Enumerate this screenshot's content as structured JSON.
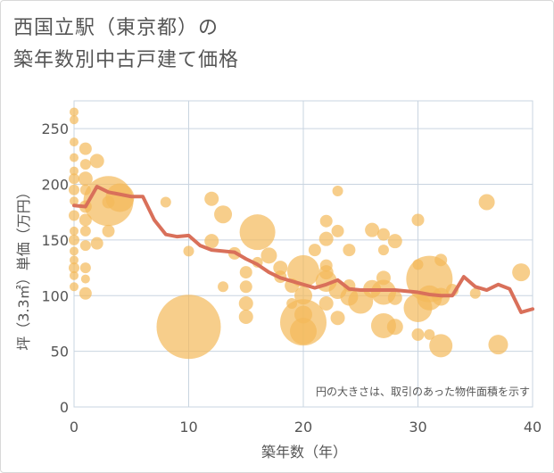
{
  "title_lines": [
    "西国立駅（東京都）の",
    "築年数別中古戸建て価格"
  ],
  "chart_data": {
    "type": "scatter",
    "xlabel": "築年数（年）",
    "ylabel": "坪（3.3㎡）単価（万円）",
    "xlim": [
      0,
      40
    ],
    "ylim": [
      0,
      275
    ],
    "x_ticks": [
      0,
      10,
      20,
      30,
      40
    ],
    "y_ticks": [
      0,
      50,
      100,
      150,
      200,
      250
    ],
    "grid": true,
    "annotation": "円の大きさは、取引のあった物件面積を示す",
    "colors": {
      "bubble": "#f4b95a",
      "line": "#d9705a",
      "grid": "#c9d4e0"
    },
    "bubbles": [
      {
        "x": 0,
        "y": 265,
        "s": 5
      },
      {
        "x": 0,
        "y": 258,
        "s": 5
      },
      {
        "x": 0,
        "y": 238,
        "s": 5
      },
      {
        "x": 0,
        "y": 224,
        "s": 5
      },
      {
        "x": 0,
        "y": 212,
        "s": 5
      },
      {
        "x": 0,
        "y": 205,
        "s": 6
      },
      {
        "x": 0,
        "y": 195,
        "s": 6
      },
      {
        "x": 0,
        "y": 185,
        "s": 5
      },
      {
        "x": 0,
        "y": 172,
        "s": 6
      },
      {
        "x": 0,
        "y": 158,
        "s": 5
      },
      {
        "x": 0,
        "y": 150,
        "s": 6
      },
      {
        "x": 0,
        "y": 140,
        "s": 5
      },
      {
        "x": 0,
        "y": 132,
        "s": 5
      },
      {
        "x": 0,
        "y": 125,
        "s": 6
      },
      {
        "x": 0,
        "y": 118,
        "s": 5
      },
      {
        "x": 0,
        "y": 108,
        "s": 5
      },
      {
        "x": 1,
        "y": 232,
        "s": 7
      },
      {
        "x": 1,
        "y": 218,
        "s": 6
      },
      {
        "x": 1,
        "y": 205,
        "s": 8
      },
      {
        "x": 1,
        "y": 195,
        "s": 6
      },
      {
        "x": 1,
        "y": 180,
        "s": 7
      },
      {
        "x": 1,
        "y": 168,
        "s": 7
      },
      {
        "x": 1,
        "y": 158,
        "s": 6
      },
      {
        "x": 1,
        "y": 145,
        "s": 6
      },
      {
        "x": 1,
        "y": 125,
        "s": 6
      },
      {
        "x": 1,
        "y": 115,
        "s": 5
      },
      {
        "x": 1,
        "y": 102,
        "s": 7
      },
      {
        "x": 2,
        "y": 221,
        "s": 8
      },
      {
        "x": 2,
        "y": 147,
        "s": 7
      },
      {
        "x": 3,
        "y": 185,
        "s": 28
      },
      {
        "x": 3,
        "y": 158,
        "s": 7
      },
      {
        "x": 3,
        "y": 184,
        "s": 7
      },
      {
        "x": 4,
        "y": 188,
        "s": 16
      },
      {
        "x": 8,
        "y": 184,
        "s": 6
      },
      {
        "x": 10,
        "y": 140,
        "s": 6
      },
      {
        "x": 10,
        "y": 72,
        "s": 36
      },
      {
        "x": 12,
        "y": 187,
        "s": 8
      },
      {
        "x": 12,
        "y": 149,
        "s": 8
      },
      {
        "x": 13,
        "y": 173,
        "s": 10
      },
      {
        "x": 13,
        "y": 108,
        "s": 6
      },
      {
        "x": 14,
        "y": 138,
        "s": 7
      },
      {
        "x": 15,
        "y": 121,
        "s": 7
      },
      {
        "x": 15,
        "y": 108,
        "s": 7
      },
      {
        "x": 15,
        "y": 93,
        "s": 8
      },
      {
        "x": 15,
        "y": 81,
        "s": 8
      },
      {
        "x": 16,
        "y": 157,
        "s": 20
      },
      {
        "x": 16,
        "y": 130,
        "s": 6
      },
      {
        "x": 17,
        "y": 136,
        "s": 9
      },
      {
        "x": 18,
        "y": 125,
        "s": 8
      },
      {
        "x": 18,
        "y": 117,
        "s": 7
      },
      {
        "x": 19,
        "y": 109,
        "s": 8
      },
      {
        "x": 19,
        "y": 93,
        "s": 6
      },
      {
        "x": 20,
        "y": 122,
        "s": 18
      },
      {
        "x": 20,
        "y": 100,
        "s": 10
      },
      {
        "x": 20,
        "y": 83,
        "s": 10
      },
      {
        "x": 20,
        "y": 76,
        "s": 26
      },
      {
        "x": 20,
        "y": 68,
        "s": 15
      },
      {
        "x": 21,
        "y": 141,
        "s": 7
      },
      {
        "x": 22,
        "y": 167,
        "s": 7
      },
      {
        "x": 22,
        "y": 151,
        "s": 8
      },
      {
        "x": 22,
        "y": 127,
        "s": 7
      },
      {
        "x": 22,
        "y": 121,
        "s": 8
      },
      {
        "x": 22,
        "y": 113,
        "s": 12
      },
      {
        "x": 22,
        "y": 93,
        "s": 8
      },
      {
        "x": 23,
        "y": 194,
        "s": 6
      },
      {
        "x": 23,
        "y": 158,
        "s": 7
      },
      {
        "x": 23,
        "y": 80,
        "s": 8
      },
      {
        "x": 23,
        "y": 105,
        "s": 10
      },
      {
        "x": 24,
        "y": 141,
        "s": 7
      },
      {
        "x": 24,
        "y": 109,
        "s": 7
      },
      {
        "x": 24,
        "y": 99,
        "s": 10
      },
      {
        "x": 25,
        "y": 95,
        "s": 14
      },
      {
        "x": 26,
        "y": 159,
        "s": 8
      },
      {
        "x": 26,
        "y": 106,
        "s": 10
      },
      {
        "x": 27,
        "y": 155,
        "s": 7
      },
      {
        "x": 27,
        "y": 141,
        "s": 6
      },
      {
        "x": 27,
        "y": 116,
        "s": 8
      },
      {
        "x": 27,
        "y": 103,
        "s": 14
      },
      {
        "x": 27,
        "y": 73,
        "s": 14
      },
      {
        "x": 28,
        "y": 149,
        "s": 8
      },
      {
        "x": 28,
        "y": 98,
        "s": 8
      },
      {
        "x": 28,
        "y": 72,
        "s": 9
      },
      {
        "x": 30,
        "y": 168,
        "s": 7
      },
      {
        "x": 30,
        "y": 128,
        "s": 6
      },
      {
        "x": 30,
        "y": 89,
        "s": 16
      },
      {
        "x": 30,
        "y": 65,
        "s": 7
      },
      {
        "x": 31,
        "y": 115,
        "s": 26
      },
      {
        "x": 31,
        "y": 98,
        "s": 14
      },
      {
        "x": 31,
        "y": 65,
        "s": 6
      },
      {
        "x": 32,
        "y": 132,
        "s": 7
      },
      {
        "x": 32,
        "y": 99,
        "s": 10
      },
      {
        "x": 32,
        "y": 55,
        "s": 13
      },
      {
        "x": 33,
        "y": 105,
        "s": 7
      },
      {
        "x": 35,
        "y": 102,
        "s": 6
      },
      {
        "x": 36,
        "y": 184,
        "s": 9
      },
      {
        "x": 37,
        "y": 56,
        "s": 11
      },
      {
        "x": 39,
        "y": 121,
        "s": 10
      }
    ],
    "average_line": {
      "x": [
        0,
        1,
        2,
        3,
        4,
        5,
        6,
        7,
        8,
        9,
        10,
        11,
        12,
        13,
        14,
        15,
        16,
        17,
        18,
        19,
        20,
        21,
        22,
        23,
        24,
        25,
        26,
        27,
        28,
        29,
        30,
        31,
        32,
        33,
        34,
        35,
        36,
        37,
        38,
        39,
        40
      ],
      "y": [
        181,
        180,
        198,
        193,
        191,
        189,
        189,
        168,
        155,
        153,
        154,
        145,
        141,
        140,
        139,
        133,
        128,
        121,
        116,
        113,
        110,
        107,
        110,
        114,
        106,
        105,
        105,
        105,
        105,
        104,
        103,
        101,
        100,
        100,
        117,
        108,
        105,
        110,
        106,
        85,
        88
      ]
    }
  }
}
